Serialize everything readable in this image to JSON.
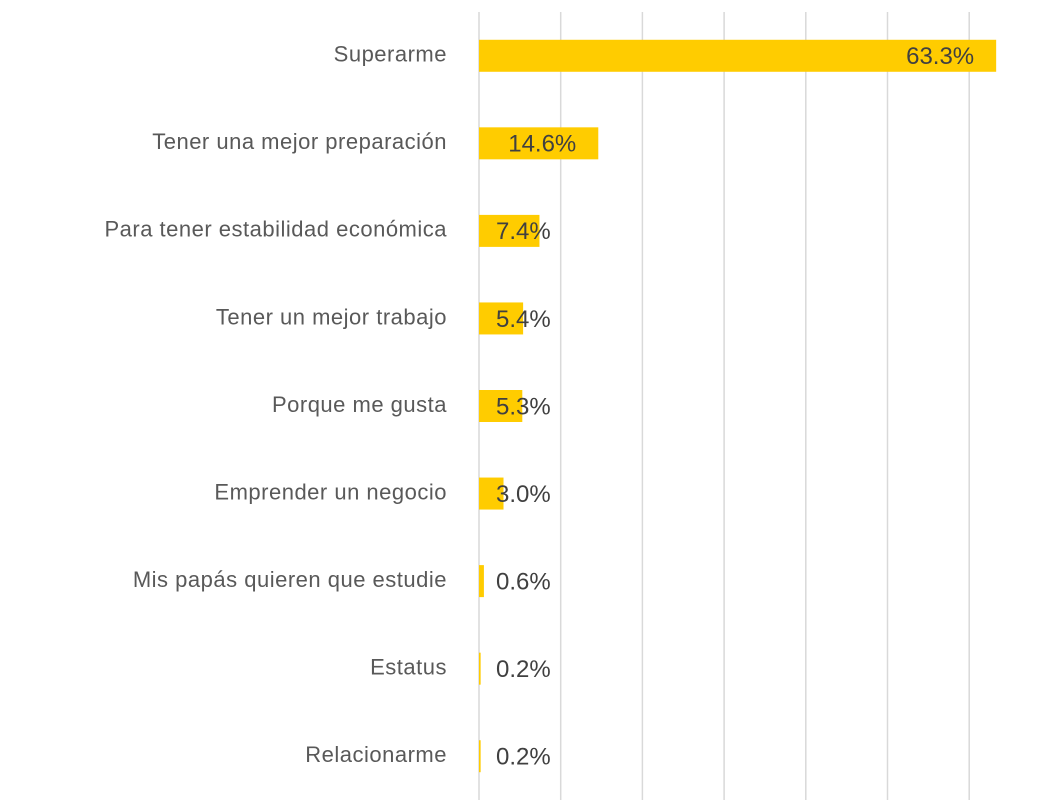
{
  "chart_data": {
    "type": "hbar",
    "categories": [
      "Superarme",
      "Tener una mejor preparación",
      "Para tener estabilidad económica",
      "Tener un mejor trabajo",
      "Porque me gusta",
      "Emprender un negocio",
      "Mis papás quieren que estudie",
      "Estatus",
      "Relacionarme"
    ],
    "values": [
      63.3,
      14.6,
      7.4,
      5.4,
      5.3,
      3.0,
      0.6,
      0.2,
      0.2
    ],
    "value_labels": [
      "63.3%",
      "14.6%",
      "7.4%",
      "5.4%",
      "5.3%",
      "3.0%",
      "0.6%",
      "0.2%",
      "0.2%"
    ],
    "color": "#ffcc00",
    "xlim": [
      0,
      65
    ],
    "xticks": [
      0,
      10,
      20,
      30,
      40,
      50,
      60
    ],
    "grid": true
  }
}
